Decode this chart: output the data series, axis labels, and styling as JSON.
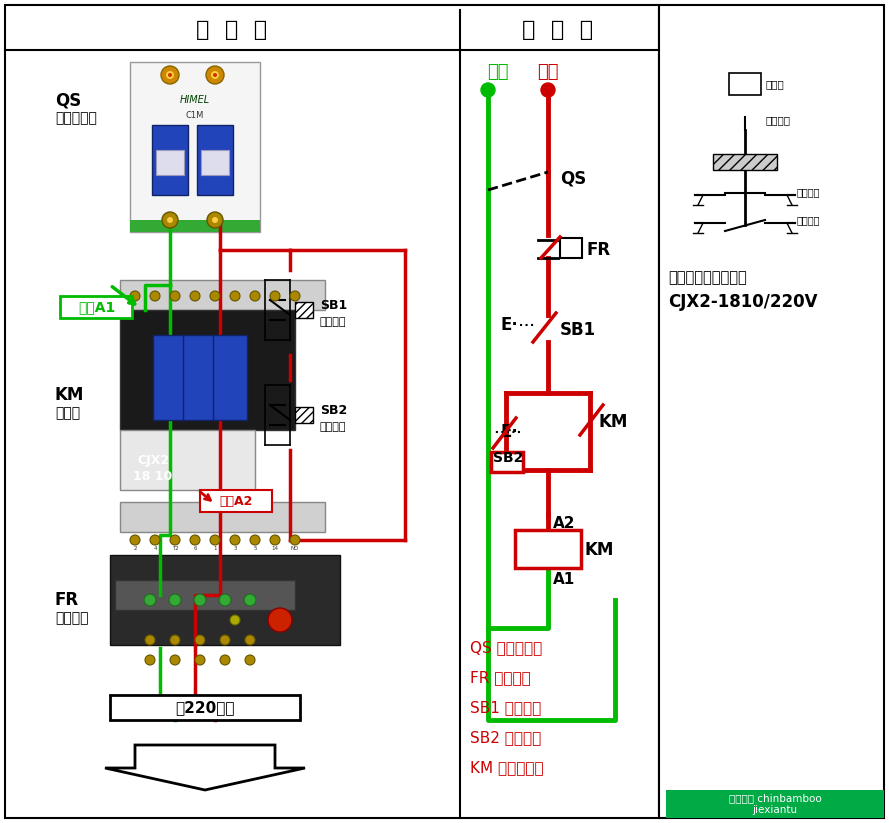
{
  "title_left": "实  物  图",
  "title_right": "原  理  图",
  "bg_color": "#ffffff",
  "green_color": "#00bb00",
  "red_color": "#cc0000",
  "black_color": "#000000",
  "zero_label": "零线",
  "fire_label": "火线",
  "legend_items": [
    "QS 空气断路器",
    "FR 热继电器",
    "SB1 停止按钮",
    "SB2 启动按钮",
    "KM 交流接触器"
  ],
  "note1": "注：交流接触器选用",
  "note2": "CJX2-1810/220V",
  "watermark_text": "百度知道 chinbamboo\njiexiantu",
  "watermark_bg": "#00aa44"
}
